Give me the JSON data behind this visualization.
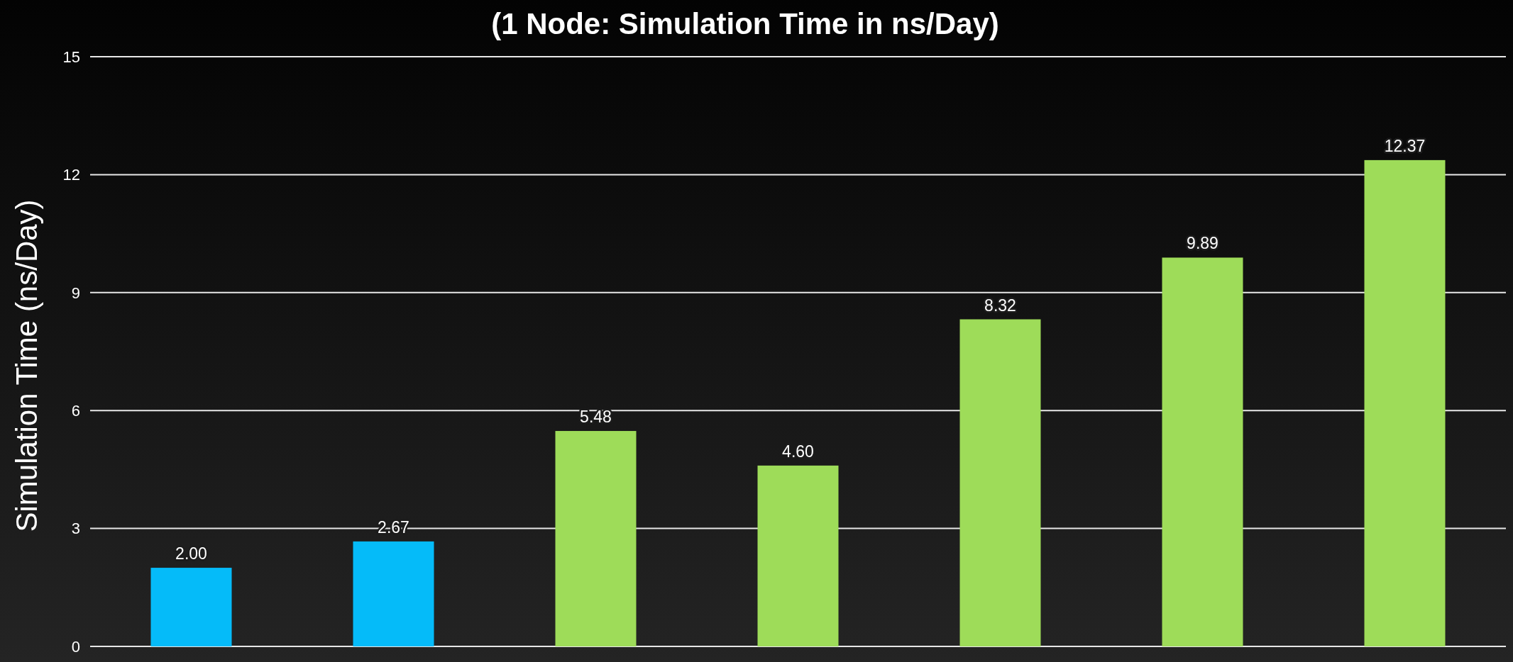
{
  "chart_data": {
    "type": "bar",
    "title": "(1 Node: Simulation Time in ns/Day)",
    "ylabel": "Simulation Time (ns/Day)",
    "categories": [
      null,
      null,
      null,
      null,
      null,
      null,
      null
    ],
    "values": [
      2.0,
      2.67,
      5.48,
      4.6,
      8.32,
      9.89,
      12.37
    ],
    "colors": [
      "#05bbf9",
      "#05bbf9",
      "#9edc59",
      "#9edc59",
      "#9edc59",
      "#9edc59",
      "#9edc59"
    ],
    "value_labels": [
      "2.00",
      "2.67",
      "5.48",
      "4.60",
      "8.32",
      "9.89",
      "12.37"
    ],
    "ylim": [
      0,
      15
    ],
    "yticks": [
      0,
      3,
      6,
      9,
      12,
      15
    ],
    "grid": "y",
    "tick_labels": "y"
  }
}
